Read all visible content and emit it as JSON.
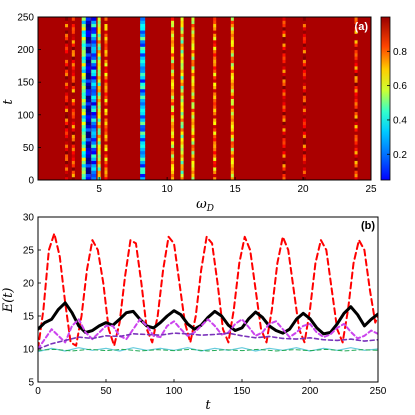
{
  "chart_data": [
    {
      "type": "heatmap",
      "panel_label": "(a)",
      "xlabel_base": "ω",
      "xlabel_sub": "D",
      "ylabel": "t",
      "xlim": [
        0.5,
        25
      ],
      "ylim": [
        0,
        250
      ],
      "xticks": [
        5,
        10,
        15,
        20,
        25
      ],
      "yticks": [
        0,
        50,
        100,
        150,
        200,
        250
      ],
      "colorbar": {
        "min": 0.05,
        "max": 1.0,
        "ticks": [
          0.2,
          0.4,
          0.6,
          0.8
        ]
      },
      "background_value": 0.96,
      "vertical_bands": [
        {
          "x": 2.6,
          "value": 0.9
        },
        {
          "x": 3.1,
          "value": 0.86
        },
        {
          "x": 3.9,
          "value": 0.5
        },
        {
          "x": 4.2,
          "value": 0.1
        },
        {
          "x": 4.6,
          "value": 0.3
        },
        {
          "x": 5.0,
          "value": 0.6
        },
        {
          "x": 5.5,
          "value": 0.78
        },
        {
          "x": 8.2,
          "value": 0.35
        },
        {
          "x": 10.4,
          "value": 0.7
        },
        {
          "x": 11.1,
          "value": 0.62
        },
        {
          "x": 11.9,
          "value": 0.68
        },
        {
          "x": 13.5,
          "value": 0.78
        },
        {
          "x": 14.8,
          "value": 0.7
        },
        {
          "x": 18.6,
          "value": 0.88
        },
        {
          "x": 20.1,
          "value": 0.9
        },
        {
          "x": 23.9,
          "value": 0.85
        }
      ]
    },
    {
      "type": "line",
      "panel_label": "(b)",
      "xlabel": "t",
      "ylabel": "E(t)",
      "xlim": [
        0,
        250
      ],
      "ylim": [
        5,
        30
      ],
      "xticks": [
        0,
        50,
        100,
        150,
        200,
        250
      ],
      "yticks": [
        5,
        10,
        15,
        20,
        25,
        30
      ],
      "series": [
        {
          "style": "dashed",
          "color": "#ff0000",
          "x": [
            0,
            4,
            8,
            12,
            16,
            20,
            24,
            28,
            32,
            36,
            40,
            44,
            48,
            52,
            56,
            60,
            64,
            68,
            72,
            76,
            80,
            84,
            88,
            92,
            96,
            100,
            104,
            108,
            112,
            116,
            120,
            124,
            128,
            132,
            136,
            140,
            144,
            148,
            152,
            156,
            160,
            164,
            168,
            172,
            176,
            180,
            184,
            188,
            192,
            196,
            200,
            204,
            208,
            212,
            216,
            220,
            224,
            228,
            232,
            236,
            240,
            244,
            248,
            250
          ],
          "y": [
            10,
            16,
            25,
            27.5,
            24,
            17,
            11,
            10.5,
            15,
            22,
            26.5,
            25,
            20,
            13,
            10.5,
            14,
            21,
            26.5,
            26,
            20,
            13,
            11,
            15,
            22,
            27,
            26,
            20,
            14,
            11,
            15,
            22,
            27,
            26,
            20,
            13,
            11,
            16,
            23,
            27,
            25,
            19,
            13,
            11,
            16,
            23,
            27,
            25,
            19,
            13,
            11,
            16,
            23,
            26.5,
            25,
            19,
            13,
            11,
            16,
            23,
            26.5,
            25,
            19,
            14,
            15
          ]
        },
        {
          "style": "solid",
          "color": "#000000",
          "x": [
            0,
            5,
            10,
            15,
            20,
            25,
            30,
            35,
            40,
            45,
            50,
            55,
            60,
            65,
            70,
            75,
            80,
            85,
            90,
            95,
            100,
            105,
            110,
            115,
            120,
            125,
            130,
            135,
            140,
            145,
            150,
            155,
            160,
            165,
            170,
            175,
            180,
            185,
            190,
            195,
            200,
            205,
            210,
            215,
            220,
            225,
            230,
            235,
            240,
            245,
            250
          ],
          "y": [
            13,
            14,
            14.5,
            16,
            17,
            15.5,
            13.5,
            12.5,
            12.8,
            13.5,
            14,
            13.6,
            14.5,
            15.5,
            15.7,
            14.5,
            13.5,
            13.2,
            14,
            15,
            15.8,
            15.2,
            13.8,
            13,
            13.6,
            14.8,
            15.7,
            15,
            13.6,
            12.8,
            13.2,
            14.6,
            15.6,
            14.8,
            13.5,
            12.8,
            12.4,
            13,
            14.5,
            15.4,
            14.6,
            13.2,
            12.3,
            12.5,
            13.8,
            15.4,
            16.4,
            15.2,
            13.5,
            14.5,
            15.3
          ]
        },
        {
          "style": "dashed",
          "color": "#cc44ee",
          "x": [
            0,
            5,
            10,
            15,
            20,
            25,
            30,
            35,
            40,
            45,
            50,
            55,
            60,
            65,
            70,
            75,
            80,
            85,
            90,
            95,
            100,
            105,
            110,
            115,
            120,
            125,
            130,
            135,
            140,
            145,
            150,
            155,
            160,
            165,
            170,
            175,
            180,
            185,
            190,
            195,
            200,
            205,
            210,
            215,
            220,
            225,
            230,
            235,
            240,
            245,
            250
          ],
          "y": [
            10,
            11.5,
            13,
            12,
            11,
            13.5,
            14.5,
            12.5,
            11.5,
            12.5,
            13.5,
            13.5,
            12,
            11.5,
            13,
            14.5,
            13.5,
            12,
            11.8,
            13.5,
            14.2,
            13,
            12,
            12.5,
            13.5,
            14.5,
            13.5,
            12.2,
            12.5,
            13.8,
            14.5,
            13.3,
            12,
            12.5,
            13.8,
            14.2,
            13,
            11.8,
            12.5,
            13.5,
            13.8,
            12.5,
            11.8,
            12.2,
            13.2,
            13.8,
            12.6,
            11.6,
            12,
            12.8,
            12.3
          ]
        },
        {
          "style": "dashed",
          "color": "#7a33bb",
          "x": [
            0,
            10,
            20,
            30,
            40,
            50,
            60,
            70,
            80,
            90,
            100,
            110,
            120,
            130,
            140,
            150,
            160,
            170,
            180,
            190,
            200,
            210,
            220,
            230,
            240,
            250
          ],
          "y": [
            10,
            10.8,
            11.3,
            11.8,
            11.6,
            12,
            11.9,
            12.3,
            12.2,
            12.1,
            12.4,
            12.3,
            12.1,
            12.2,
            12.4,
            12,
            11.7,
            11.9,
            11.6,
            11.5,
            11.7,
            11.4,
            11.3,
            11.5,
            11.2,
            11.4
          ]
        },
        {
          "style": "solid",
          "color": "#66ccdd",
          "x": [
            0,
            10,
            20,
            30,
            40,
            50,
            60,
            70,
            80,
            90,
            100,
            110,
            120,
            130,
            140,
            150,
            160,
            170,
            180,
            190,
            200,
            210,
            220,
            230,
            240,
            250
          ],
          "y": [
            9.6,
            10.1,
            9.7,
            10.2,
            9.8,
            10.1,
            9.7,
            10.2,
            9.8,
            10.1,
            9.8,
            10.2,
            9.7,
            10.1,
            9.8,
            10.2,
            9.7,
            10.1,
            9.8,
            10.2,
            9.7,
            10.1,
            9.8,
            10.2,
            9.8,
            10
          ]
        },
        {
          "style": "dashed",
          "color": "#22aa55",
          "x": [
            0,
            12,
            25,
            38,
            50,
            62,
            75,
            88,
            100,
            112,
            125,
            138,
            150,
            162,
            175,
            188,
            200,
            212,
            225,
            238,
            250
          ],
          "y": [
            9.8,
            9.95,
            9.7,
            9.95,
            9.75,
            9.95,
            9.7,
            9.9,
            9.75,
            9.95,
            9.7,
            9.9,
            9.75,
            9.95,
            9.7,
            9.9,
            9.75,
            9.95,
            9.7,
            9.9,
            9.8
          ]
        }
      ]
    }
  ]
}
